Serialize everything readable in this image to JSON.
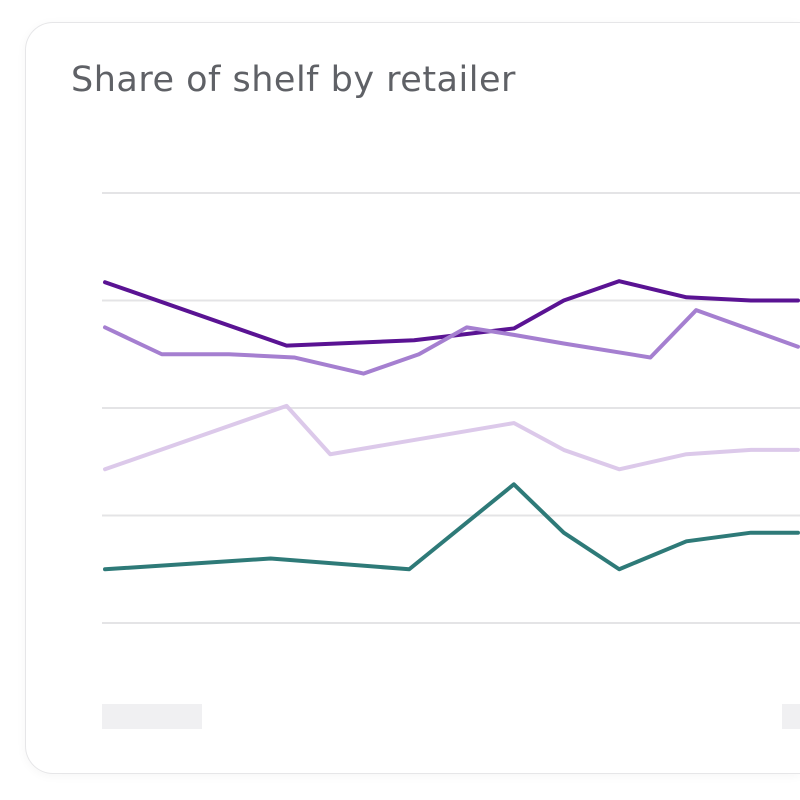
{
  "chart_data": {
    "type": "line",
    "title": "Share of shelf by retailer",
    "xlabel": "",
    "ylabel": "",
    "xlim": [
      0,
      100
    ],
    "ylim": [
      0,
      4
    ],
    "grid": true,
    "legend": "none",
    "series": [
      {
        "color": "#5a1393",
        "x": [
          0,
          26.2,
          44.6,
          59,
          66.2,
          74.2,
          83.9,
          93.2,
          100
        ],
        "values": [
          3.17,
          2.58,
          2.63,
          2.74,
          3.0,
          3.18,
          3.03,
          3.0,
          3.0
        ]
      },
      {
        "color": "#a57fd0",
        "x": [
          0,
          8.2,
          17.9,
          27.3,
          37.3,
          45.3,
          52.2,
          59,
          66.2,
          78.7,
          85.3,
          100
        ],
        "values": [
          2.75,
          2.5,
          2.5,
          2.47,
          2.32,
          2.5,
          2.75,
          2.68,
          2.6,
          2.47,
          2.91,
          2.57
        ]
      },
      {
        "color": "#dcc9ea",
        "x": [
          0,
          26.2,
          32.5,
          59,
          66.2,
          74.2,
          83.9,
          93.2,
          100
        ],
        "values": [
          1.43,
          2.02,
          1.57,
          1.86,
          1.61,
          1.43,
          1.57,
          1.61,
          1.61
        ]
      },
      {
        "color": "#2e7a78",
        "x": [
          0,
          23.9,
          43.9,
          59,
          66.2,
          74.2,
          83.9,
          93.2,
          100
        ],
        "values": [
          0.5,
          0.6,
          0.5,
          1.29,
          0.84,
          0.5,
          0.76,
          0.84,
          0.84
        ]
      }
    ],
    "gridlines": [
      0,
      1,
      2,
      3,
      4
    ]
  },
  "colors": {
    "grid": "#e4e4e6",
    "placeholder": "#f0f0f2",
    "title": "#5f6166"
  }
}
